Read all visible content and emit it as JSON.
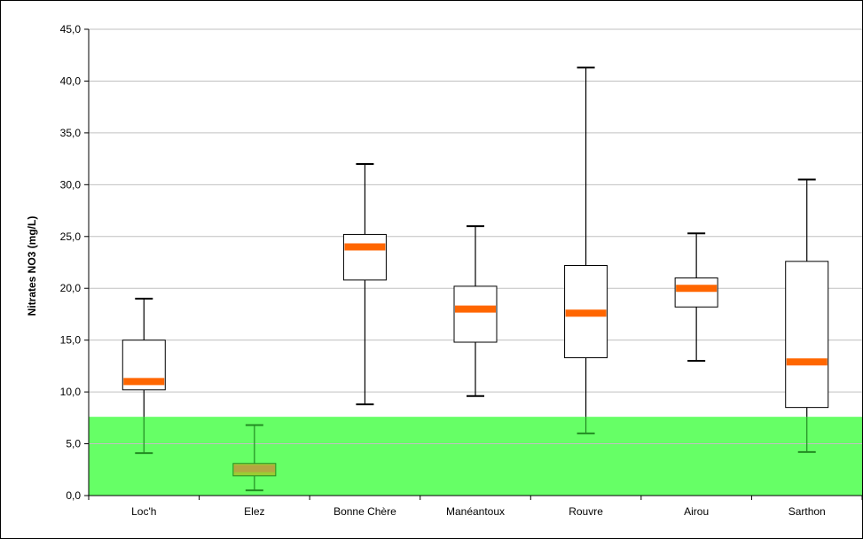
{
  "chart_data": {
    "type": "boxplot",
    "xlabel": "",
    "ylabel": "Nitrates NO3 (mg/L)",
    "ylim": [
      0,
      45
    ],
    "y_ticks": [
      "0,0",
      "5,0",
      "10,0",
      "15,0",
      "20,0",
      "25,0",
      "30,0",
      "35,0",
      "40,0",
      "45,0"
    ],
    "grid": true,
    "categories": [
      "Loc'h",
      "Elez",
      "Bonne Chère",
      "Manéantoux",
      "Rouvre",
      "Airou",
      "Sarthon"
    ],
    "boxes": [
      {
        "category": "Loc'h",
        "min": 4.1,
        "q1": 10.2,
        "median": 11.0,
        "q3": 15.0,
        "max": 19.0
      },
      {
        "category": "Elez",
        "min": 0.5,
        "q1": 1.9,
        "median": 2.6,
        "q3": 3.1,
        "max": 6.8
      },
      {
        "category": "Bonne Chère",
        "min": 8.8,
        "q1": 20.8,
        "median": 24.0,
        "q3": 25.2,
        "max": 32.0
      },
      {
        "category": "Manéantoux",
        "min": 9.6,
        "q1": 14.8,
        "median": 18.0,
        "q3": 20.2,
        "max": 26.0
      },
      {
        "category": "Rouvre",
        "min": 6.0,
        "q1": 13.3,
        "median": 17.6,
        "q3": 22.2,
        "max": 41.3
      },
      {
        "category": "Airou",
        "min": 13.0,
        "q1": 18.2,
        "median": 20.0,
        "q3": 21.0,
        "max": 25.3
      },
      {
        "category": "Sarthon",
        "min": 4.2,
        "q1": 8.5,
        "median": 12.9,
        "q3": 22.6,
        "max": 30.5
      }
    ],
    "threshold_band": {
      "from": 0,
      "to": 7.6,
      "color": "#66ff66"
    },
    "colors": {
      "median": "#ff6600",
      "box_stroke": "#000000",
      "whisker_in_band": "#228b22",
      "grid": "#c0c0c0"
    }
  }
}
